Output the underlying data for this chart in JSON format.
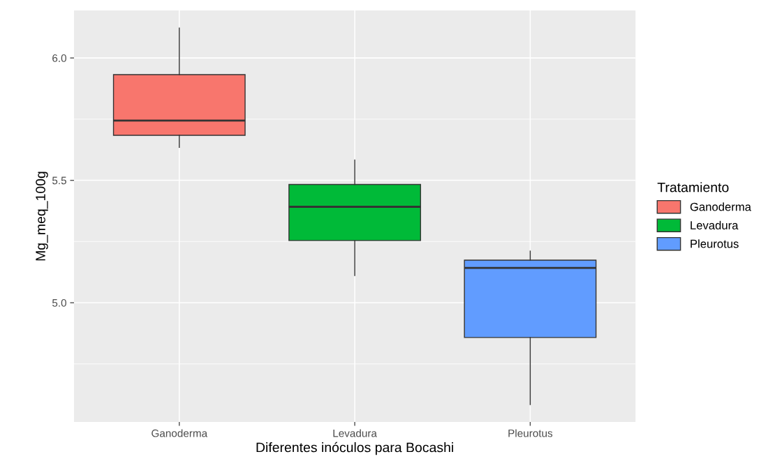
{
  "chart_data": {
    "type": "box",
    "xlabel": "Diferentes inóculos para Bocashi",
    "ylabel": "Mg_meq_100g",
    "legend_title": "Tratamiento",
    "categories": [
      "Ganoderma",
      "Levadura",
      "Pleurotus"
    ],
    "series": [
      {
        "name": "Ganoderma",
        "color": "#f8766d",
        "boxes": [
          {
            "low": 5.635,
            "q1": 5.684,
            "median": 5.744,
            "q3": 5.932,
            "high": 6.122
          },
          null,
          null
        ]
      },
      {
        "name": "Levadura",
        "color": "#00ba38",
        "boxes": [
          null,
          {
            "low": 5.111,
            "q1": 5.254,
            "median": 5.392,
            "q3": 5.483,
            "high": 5.583
          },
          null
        ]
      },
      {
        "name": "Pleurotus",
        "color": "#619cff",
        "boxes": [
          null,
          null,
          {
            "low": 4.584,
            "q1": 4.858,
            "median": 5.142,
            "q3": 5.174,
            "high": 5.211
          }
        ]
      }
    ],
    "ylim": [
      4.513,
      6.194
    ],
    "yticks": [
      {
        "value": 5.0,
        "label": "5.0"
      },
      {
        "value": 5.5,
        "label": "5.5"
      },
      {
        "value": 6.0,
        "label": "6.0"
      }
    ],
    "grid": true,
    "legend": "right"
  }
}
